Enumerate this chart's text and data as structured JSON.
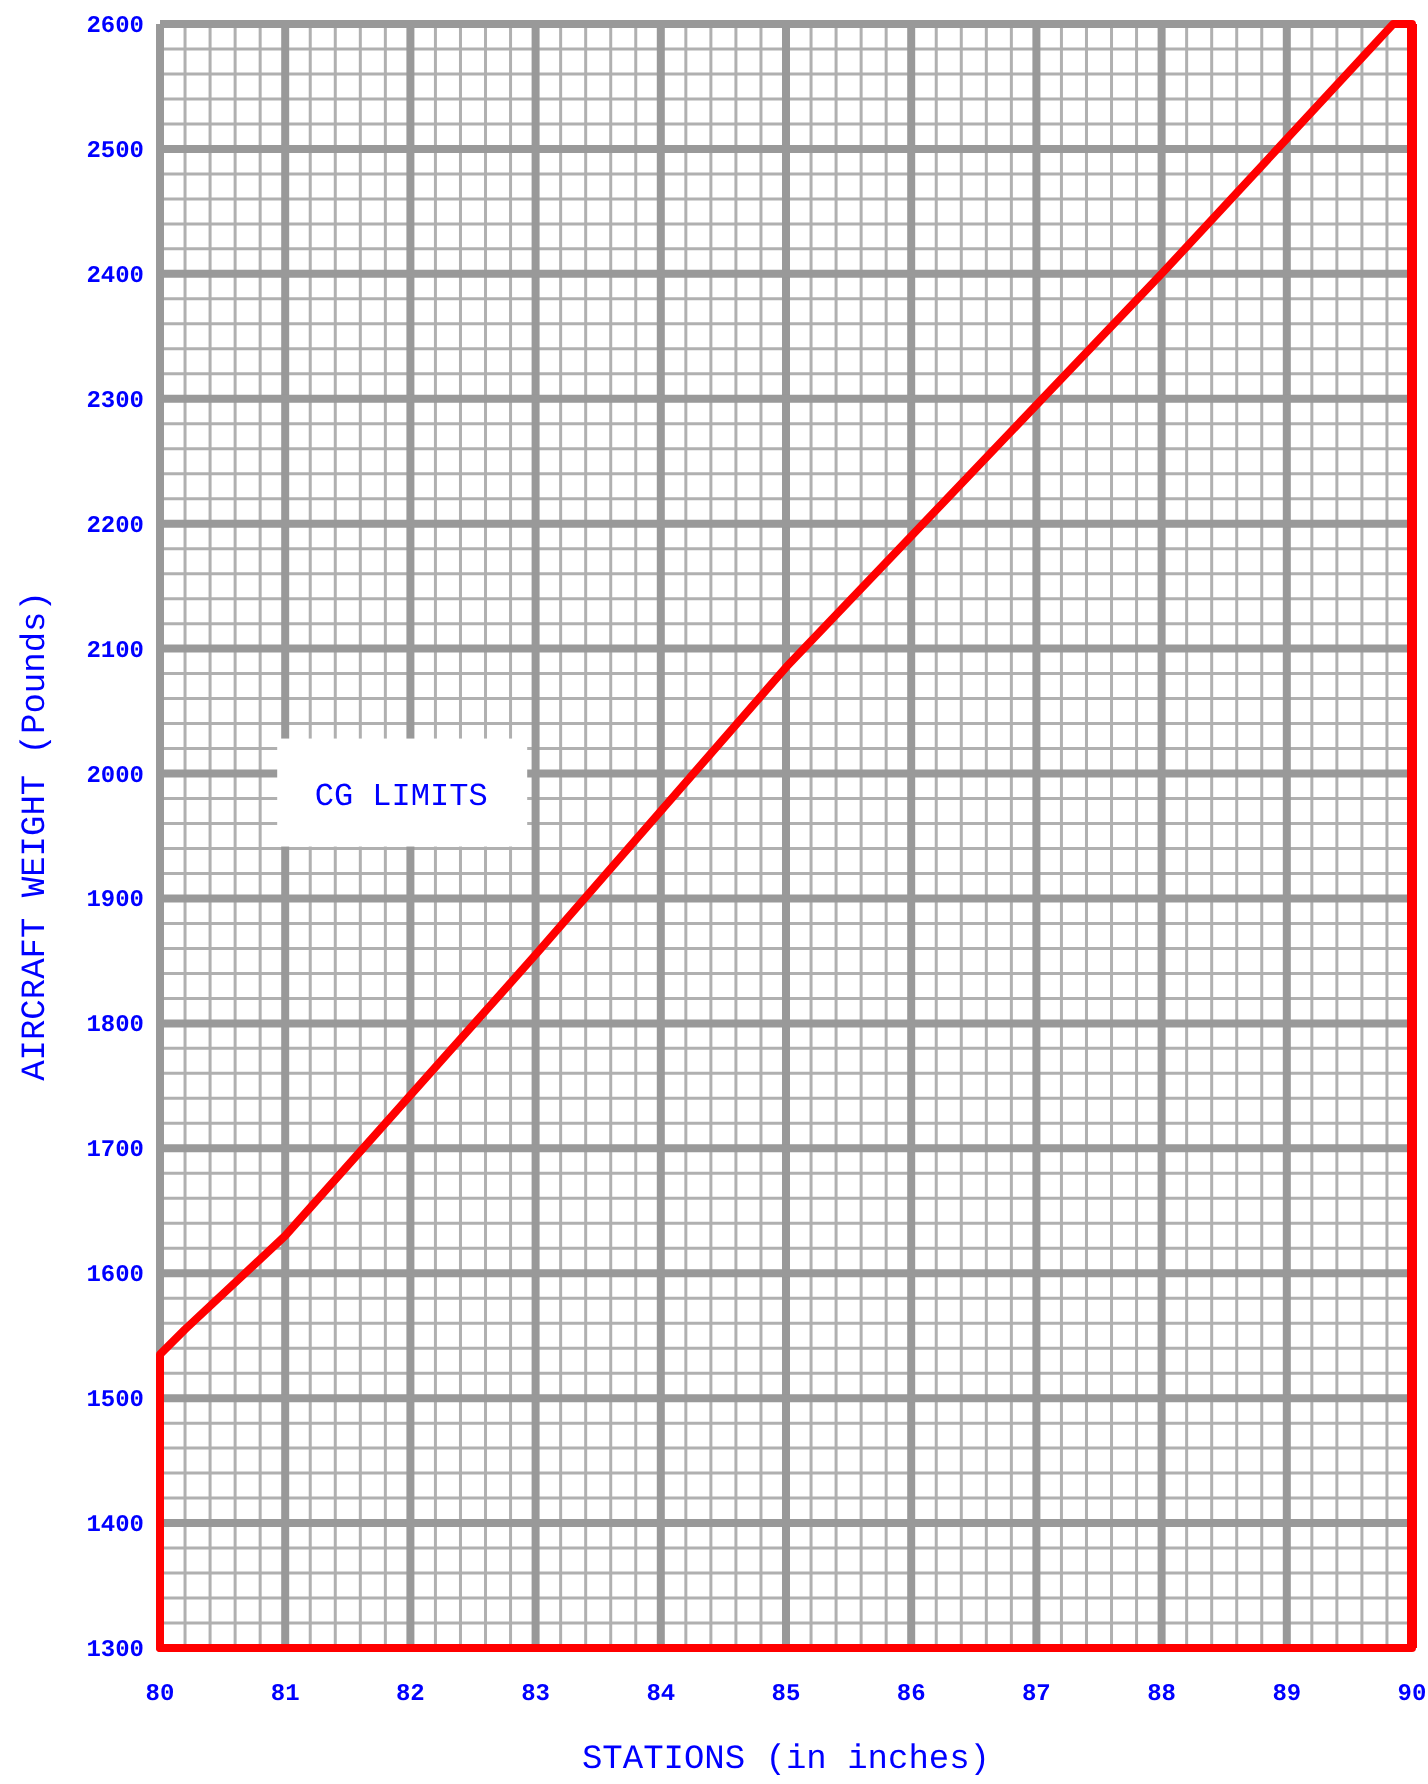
{
  "chart_data": {
    "type": "line",
    "xlabel": "STATIONS (in inches)",
    "ylabel": "AIRCRAFT WEIGHT (Pounds)",
    "annotations": [
      "CG LIMITS"
    ],
    "series": [
      {
        "color": "#ff0000",
        "x": [
          80,
          80,
          80.2,
          81,
          83,
          85,
          88,
          89.85,
          90
        ],
        "values": [
          1300,
          1535,
          1555,
          1630,
          1855,
          2085,
          2400,
          2600,
          2600
        ]
      },
      {
        "color": "#ff0000",
        "x": [
          80,
          90
        ],
        "values": [
          1300,
          1300
        ]
      }
    ],
    "ref_lines": [
      {
        "axis": "x",
        "value": 90,
        "color": "#ff0000"
      }
    ],
    "xlim": [
      80,
      90
    ],
    "xticks": [
      80,
      81,
      82,
      83,
      84,
      85,
      86,
      87,
      88,
      89,
      90
    ],
    "ylim": [
      1300,
      2600
    ],
    "yticks": [
      1300,
      1400,
      1500,
      1600,
      1700,
      1800,
      1900,
      2000,
      2100,
      2200,
      2300,
      2400,
      2500,
      2600
    ],
    "grid": true,
    "marker": "none",
    "line_style": "solid"
  }
}
